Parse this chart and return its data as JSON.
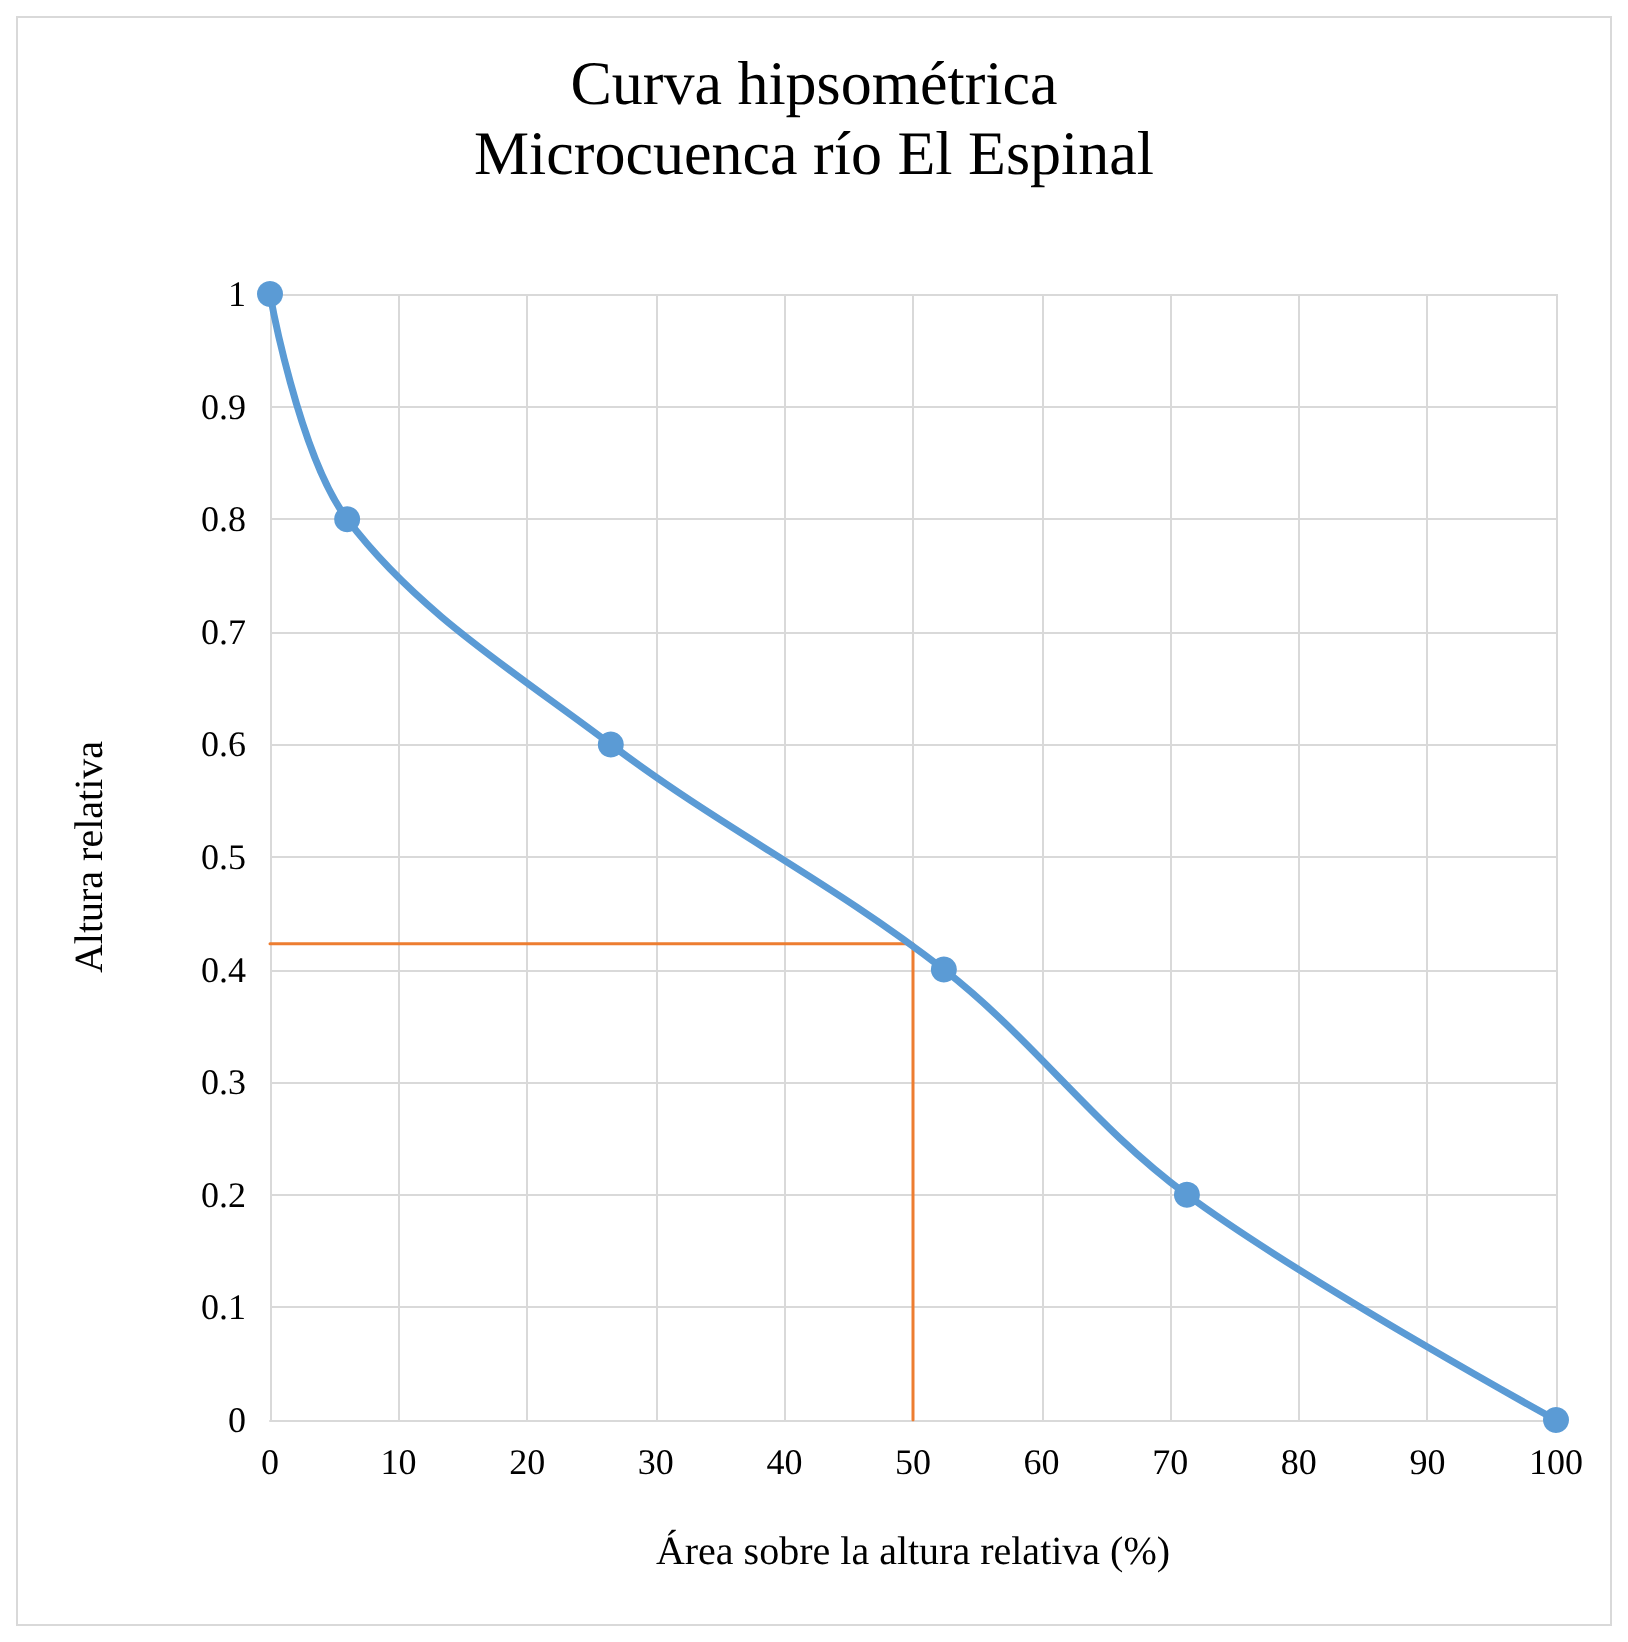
{
  "chart_data": {
    "type": "line",
    "title": "Curva hipsométrica",
    "subtitle": "Microcuenca río El Espinal",
    "xlabel": "Área sobre la altura relativa (%)",
    "ylabel": "Altura relativa",
    "series": [
      {
        "color": "#5b9bd5",
        "x": [
          0,
          6,
          26.5,
          52.4,
          71.3,
          100
        ],
        "values": [
          1,
          0.8,
          0.6,
          0.4,
          0.2,
          0
        ]
      },
      {
        "color": "#ed7d31",
        "x": [
          0,
          50,
          50
        ],
        "values": [
          0.423,
          0.423,
          0
        ],
        "marker": "none"
      }
    ],
    "xlim": [
      0,
      100
    ],
    "xticks": [
      0,
      10,
      20,
      30,
      40,
      50,
      60,
      70,
      80,
      90,
      100
    ],
    "ylim": [
      0,
      1
    ],
    "yticks": [
      0,
      0.1,
      0.2,
      0.3,
      0.4,
      0.5,
      0.6,
      0.7,
      0.8,
      0.9,
      1
    ],
    "grid": true,
    "marker": "circle",
    "line_style": "solid"
  }
}
